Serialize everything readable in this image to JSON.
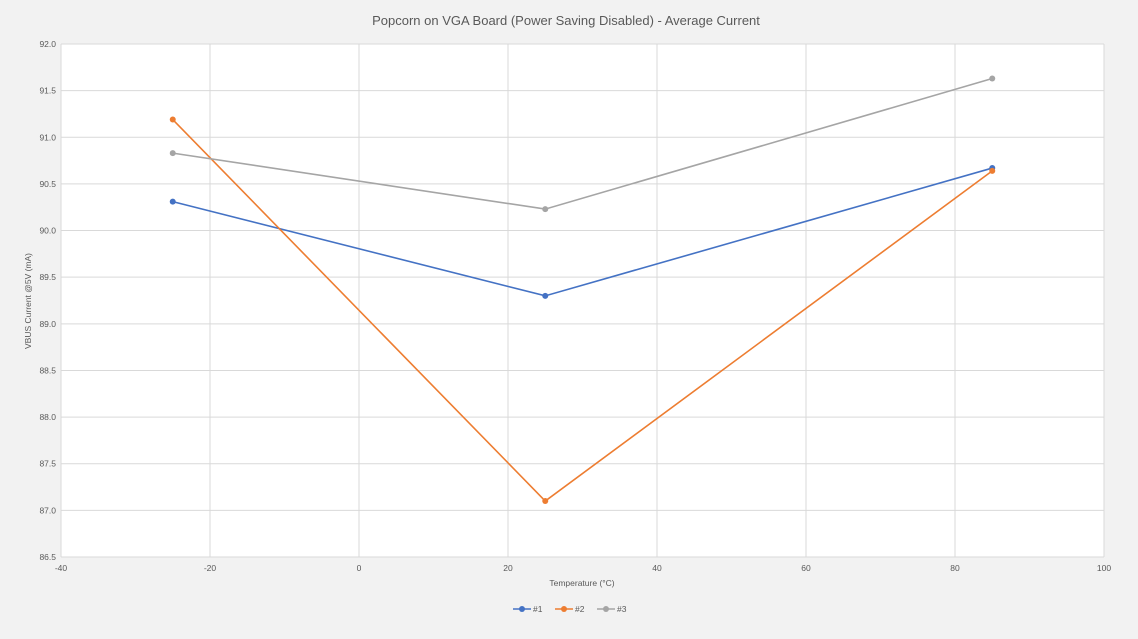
{
  "chart_data": {
    "type": "line",
    "title": "Popcorn on VGA Board (Power Saving Disabled) - Average Current",
    "xlabel": "Temperature (°C)",
    "ylabel": "VBUS Current @5V (mA)",
    "xlim": [
      -40,
      100
    ],
    "ylim": [
      86.5,
      92.0
    ],
    "x_ticks": [
      -40,
      -20,
      0,
      20,
      40,
      60,
      80,
      100
    ],
    "y_ticks": [
      86.5,
      87.0,
      87.5,
      88.0,
      88.5,
      89.0,
      89.5,
      90.0,
      90.5,
      91.0,
      91.5,
      92.0
    ],
    "grid": true,
    "legend": "bottom",
    "series": [
      {
        "name": "#1",
        "color": "#4472c4",
        "x": [
          -25,
          25,
          85
        ],
        "values": [
          90.31,
          89.3,
          90.67
        ]
      },
      {
        "name": "#2",
        "color": "#ed7d31",
        "x": [
          -25,
          25,
          85
        ],
        "values": [
          91.19,
          87.1,
          90.64
        ]
      },
      {
        "name": "#3",
        "color": "#a5a5a5",
        "x": [
          -25,
          25,
          85
        ],
        "values": [
          90.83,
          90.23,
          91.63
        ]
      }
    ]
  }
}
